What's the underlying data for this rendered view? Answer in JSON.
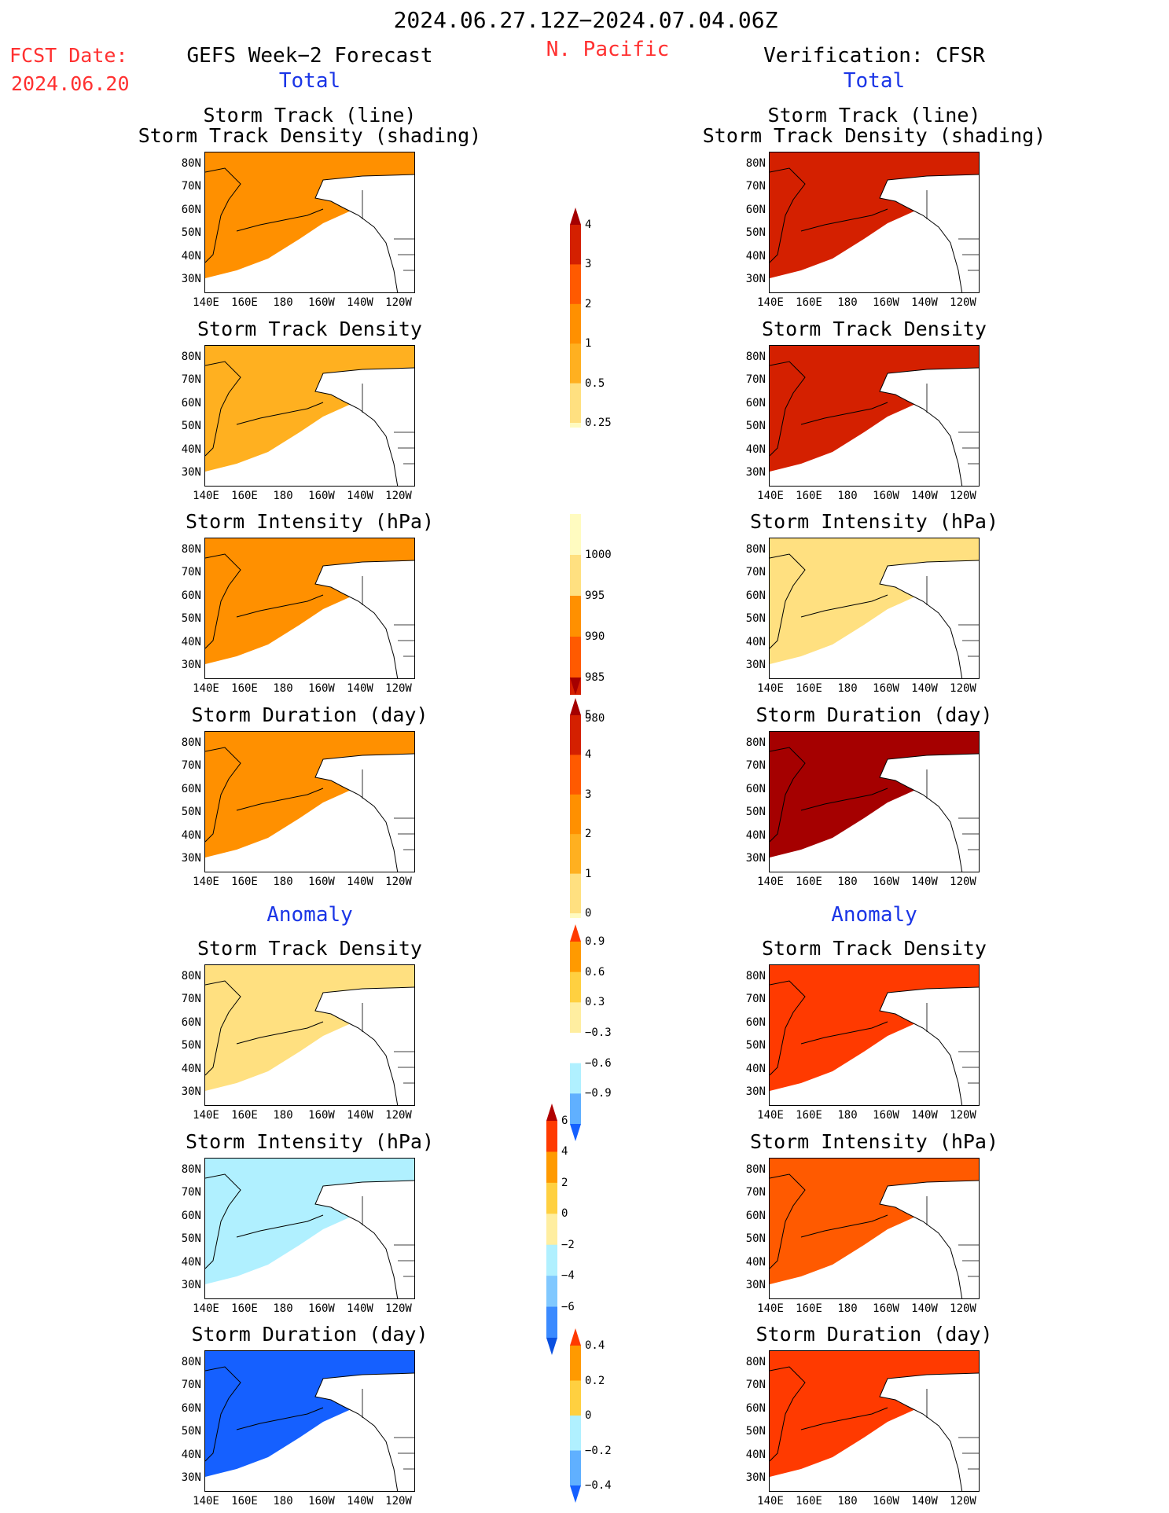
{
  "header": {
    "date_range": "2024.06.27.12Z−2024.07.04.06Z",
    "region": "N. Pacific",
    "fcst_label": "FCST Date:",
    "fcst_date": "2024.06.20",
    "left_title": "GEFS Week−2 Forecast",
    "right_title": "Verification: CFSR",
    "total_label": "Total",
    "anomaly_label": "Anomaly"
  },
  "panel_titles": {
    "track_line_1": "Storm Track (line)",
    "track_line_2": "Storm Track Density (shading)",
    "density": "Storm Track Density",
    "intensity": "Storm Intensity (hPa)",
    "duration": "Storm Duration (day)"
  },
  "axes": {
    "lat_labels": [
      "80N",
      "70N",
      "60N",
      "50N",
      "40N",
      "30N"
    ],
    "lon_labels": [
      "140E",
      "160E",
      "180",
      "160W",
      "140W",
      "120W"
    ]
  },
  "colorbars": {
    "density_total": {
      "labels": [
        "4",
        "3",
        "2",
        "1",
        "0.5",
        "0.25"
      ],
      "colors": [
        "#a50000",
        "#d42000",
        "#ff5a00",
        "#ff9000",
        "#ffb020",
        "#ffe080",
        "#fffbc0"
      ]
    },
    "intensity_total": {
      "labels": [
        "1000",
        "995",
        "990",
        "985",
        "980"
      ],
      "colors": [
        "#fffbc0",
        "#ffe080",
        "#ff9000",
        "#ff5a00",
        "#d42000",
        "#a50000"
      ]
    },
    "duration_total": {
      "labels": [
        "5",
        "4",
        "3",
        "2",
        "1",
        "0"
      ],
      "colors": [
        "#a50000",
        "#d42000",
        "#ff5a00",
        "#ff9000",
        "#ffb020",
        "#ffe080",
        "#fffbc0"
      ]
    },
    "density_anom": {
      "labels": [
        "0.9",
        "0.6",
        "0.3",
        "−0.3",
        "−0.6",
        "−0.9"
      ],
      "colors": [
        "#ff3a00",
        "#ff9a00",
        "#ffd040",
        "#ffeea0",
        "#ffffff",
        "#b0f0ff",
        "#60b0ff",
        "#1560ff"
      ]
    },
    "intensity_anom": {
      "labels": [
        "6",
        "4",
        "2",
        "0",
        "−2",
        "−4",
        "−6"
      ],
      "colors": [
        "#b00000",
        "#ff3a00",
        "#ff9a00",
        "#ffd040",
        "#ffeea0",
        "#b0f0ff",
        "#80c8ff",
        "#3a8aff",
        "#0a50e0"
      ]
    },
    "duration_anom": {
      "labels": [
        "0.4",
        "0.2",
        "0",
        "−0.2",
        "−0.4"
      ],
      "colors": [
        "#ff3a00",
        "#ff9a00",
        "#ffd040",
        "#b0f0ff",
        "#60b0ff",
        "#1560ff"
      ]
    }
  },
  "map_fills": {
    "f_track": "#ff9000",
    "f_dens": "#ffb020",
    "f_int": "#ff9000",
    "f_dur": "#ff9000",
    "f_adens": "#ffe080",
    "f_aint": "#b0f0ff",
    "f_adur": "#1560ff",
    "v_track": "#d42000",
    "v_dens": "#d42000",
    "v_int": "#ffe080",
    "v_dur": "#a50000",
    "v_adens": "#ff3a00",
    "v_aint": "#ff5a00",
    "v_adur": "#ff3a00"
  }
}
